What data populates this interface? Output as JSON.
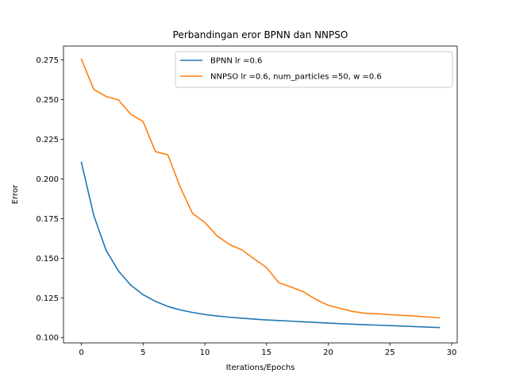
{
  "chart_data": {
    "type": "line",
    "title": "Perbandingan eror BPNN dan NNPSO",
    "xlabel": "Iterations/Epochs",
    "ylabel": "Error",
    "xlim": [
      -1.45,
      30.45
    ],
    "ylim": [
      0.0966,
      0.2838
    ],
    "xticks": [
      0,
      5,
      10,
      15,
      20,
      25,
      30
    ],
    "yticks": [
      0.1,
      0.125,
      0.15,
      0.175,
      0.2,
      0.225,
      0.25,
      0.275
    ],
    "ytick_labels": [
      "0.100",
      "0.125",
      "0.150",
      "0.175",
      "0.200",
      "0.225",
      "0.250",
      "0.275"
    ],
    "grid": false,
    "legend_position": "top-right",
    "x": [
      0,
      1,
      2,
      3,
      4,
      5,
      6,
      7,
      8,
      9,
      10,
      11,
      12,
      13,
      14,
      15,
      16,
      17,
      18,
      19,
      20,
      21,
      22,
      23,
      24,
      25,
      26,
      27,
      28,
      29
    ],
    "series": [
      {
        "name": "BPNN lr =0.6",
        "color": "#1f77b4",
        "values": [
          0.2105,
          0.177,
          0.155,
          0.142,
          0.133,
          0.127,
          0.1228,
          0.1196,
          0.1174,
          0.1158,
          0.1145,
          0.1136,
          0.1128,
          0.1122,
          0.1116,
          0.1111,
          0.1107,
          0.1103,
          0.1099,
          0.1095,
          0.1091,
          0.1087,
          0.1084,
          0.1081,
          0.1078,
          0.1075,
          0.1072,
          0.1069,
          0.1066,
          0.1063
        ]
      },
      {
        "name": "NNPSO lr =0.6, num_particles =50, w =0.6",
        "color": "#ff7f0e",
        "values": [
          0.2755,
          0.2565,
          0.252,
          0.2498,
          0.2408,
          0.2362,
          0.2172,
          0.2153,
          0.195,
          0.1783,
          0.1726,
          0.164,
          0.1586,
          0.1553,
          0.1496,
          0.1441,
          0.1345,
          0.1318,
          0.1288,
          0.124,
          0.1203,
          0.1183,
          0.1164,
          0.1153,
          0.115,
          0.1144,
          0.114,
          0.1136,
          0.113,
          0.1124
        ]
      }
    ]
  }
}
